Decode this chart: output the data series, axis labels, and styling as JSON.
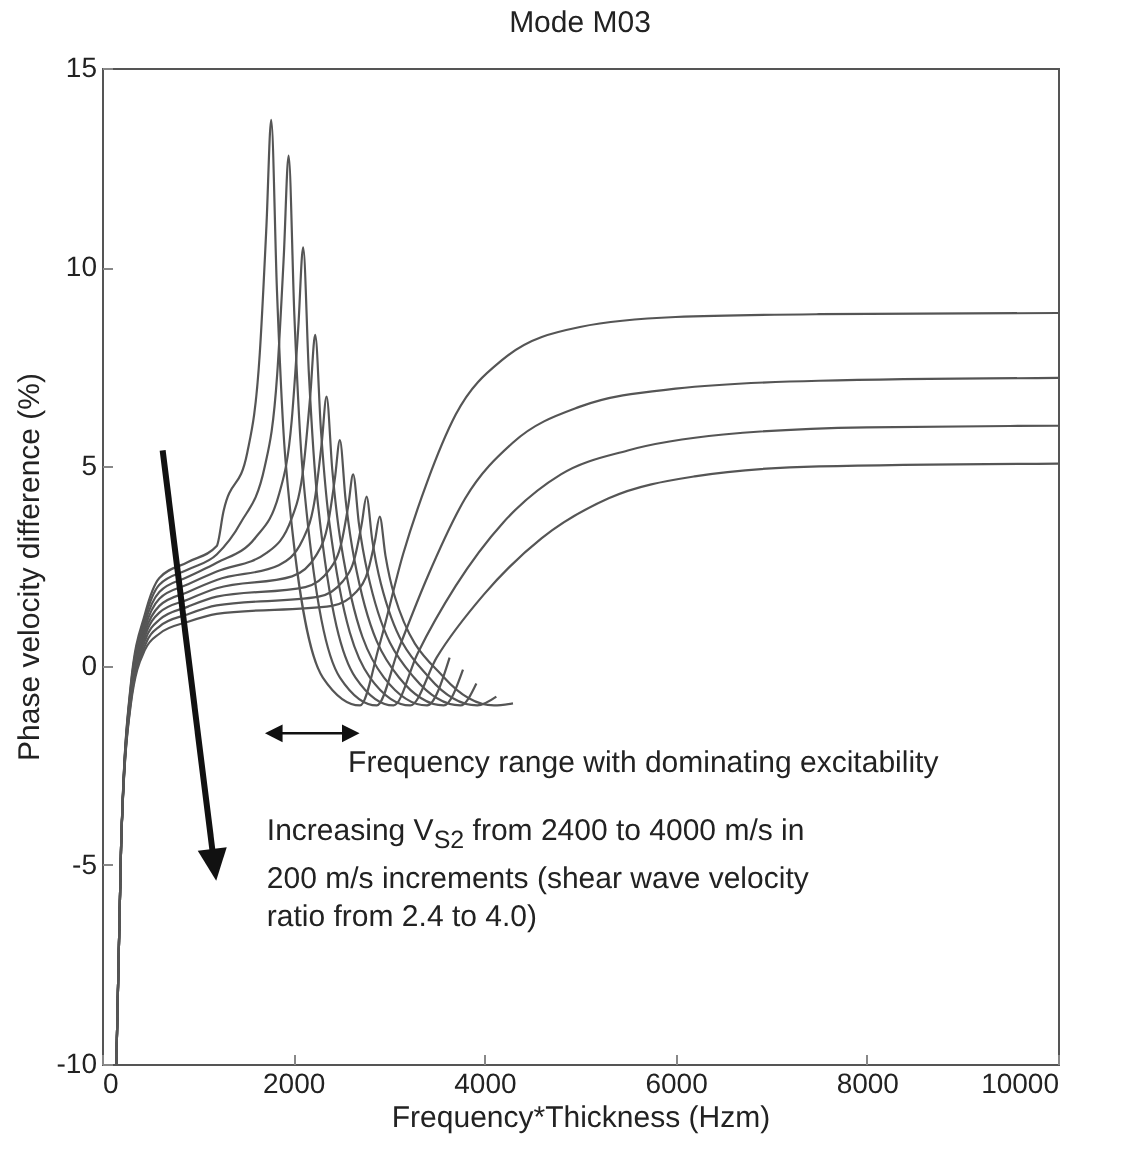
{
  "chart_data": {
    "type": "line",
    "title": "Mode M03",
    "xlabel": "Frequency*Thickness (Hzm)",
    "ylabel": "Phase velocity difference (%)",
    "xlim": [
      0,
      10000
    ],
    "xticks": [
      0,
      2000,
      4000,
      6000,
      8000,
      10000
    ],
    "ylim": [
      -10,
      15
    ],
    "yticks": [
      -10,
      -5,
      0,
      5,
      10,
      15
    ],
    "grid": false,
    "annotations": [
      "Frequency range with dominating excitability",
      "Increasing V$_{S2}$ from 2400 to 4000 m/s in 200 m/s increments (shear wave velocity ratio from 2.4 to 4.0)"
    ],
    "series": [
      {
        "color": "#555555",
        "x": [
          150,
          200,
          300,
          450,
          600,
          900,
          1200,
          1270,
          1520,
          1650,
          1720,
          1770,
          1830,
          1920,
          2310,
          2700,
          2900,
          3150,
          3400,
          3700,
          4200,
          5000,
          6000,
          7500,
          10000
        ],
        "values": [
          -10,
          -4.5,
          -0.5,
          1.3,
          2.2,
          2.6,
          3.0,
          3.86,
          5.35,
          7.82,
          11.03,
          13.7,
          9.42,
          5.14,
          -0.3,
          -1.0,
          0.5,
          2.8,
          4.6,
          6.3,
          7.7,
          8.5,
          8.75,
          8.82,
          8.85
        ]
      },
      {
        "color": "#555555",
        "x": [
          150,
          200,
          300,
          450,
          600,
          900,
          1200,
          1452,
          1702,
          1832,
          1902,
          1952,
          2012,
          2102,
          2489,
          2875,
          3100,
          3400,
          3800,
          4300,
          5000,
          6000,
          7500,
          10000
        ],
        "values": [
          -10,
          -4.5,
          -0.56,
          1.19,
          2.03,
          2.41,
          2.79,
          3.59,
          4.99,
          7.29,
          10.3,
          12.8,
          8.8,
          4.79,
          -0.3,
          -1.0,
          0.4,
          2.2,
          4.2,
          5.6,
          6.5,
          6.95,
          7.15,
          7.22
        ]
      },
      {
        "color": "#555555",
        "x": [
          150,
          200,
          300,
          450,
          600,
          900,
          1200,
          1604,
          1854,
          1984,
          2054,
          2104,
          2164,
          2254,
          2652,
          3050,
          3300,
          3700,
          4200,
          4800,
          5500,
          6500,
          8000,
          10000
        ],
        "values": [
          -10,
          -4.5,
          -0.63,
          1.08,
          1.85,
          2.23,
          2.58,
          3.21,
          4.32,
          6.14,
          8.52,
          10.5,
          7.33,
          4.16,
          -0.3,
          -1.0,
          0.3,
          2.0,
          3.6,
          4.8,
          5.4,
          5.8,
          5.98,
          6.02
        ]
      },
      {
        "color": "#555555",
        "x": [
          150,
          200,
          300,
          450,
          600,
          900,
          1200,
          1730,
          1980,
          2110,
          2180,
          2230,
          2290,
          2380,
          2803,
          3225,
          3500,
          4000,
          4600,
          5300,
          6200,
          7500,
          10000
        ],
        "values": [
          -10,
          -4.5,
          -0.69,
          0.96,
          1.68,
          2.04,
          2.36,
          2.84,
          3.67,
          5.03,
          6.82,
          8.3,
          5.92,
          3.55,
          -0.3,
          -1.0,
          0.2,
          1.8,
          3.2,
          4.2,
          4.75,
          5.0,
          5.07
        ]
      },
      {
        "color": "#555555",
        "x": [
          150,
          200,
          300,
          450,
          600,
          900,
          1200,
          1849,
          2099,
          2229,
          2299,
          2349,
          2409,
          2499,
          2950,
          3400,
          3636
        ],
        "values": [
          -10,
          -4.5,
          -0.75,
          0.85,
          1.5,
          1.85,
          2.15,
          2.52,
          3.16,
          4.22,
          5.6,
          6.75,
          4.91,
          3.07,
          -0.3,
          -1.0,
          0.2
        ]
      },
      {
        "color": "#555555",
        "x": [
          150,
          200,
          300,
          450,
          600,
          900,
          1200,
          1988,
          2238,
          2368,
          2438,
          2488,
          2548,
          2638,
          3107,
          3575,
          3776
        ],
        "values": [
          -10,
          -4.5,
          -0.81,
          0.74,
          1.33,
          1.66,
          1.94,
          2.24,
          2.76,
          3.61,
          4.73,
          5.66,
          4.17,
          2.68,
          -0.3,
          -1.0,
          -0.1
        ]
      },
      {
        "color": "#555555",
        "x": [
          150,
          200,
          300,
          450,
          600,
          900,
          1200,
          2127,
          2377,
          2507,
          2577,
          2627,
          2687,
          2777,
          3264,
          3750,
          3916
        ],
        "values": [
          -10,
          -4.5,
          -0.88,
          0.63,
          1.15,
          1.48,
          1.73,
          1.97,
          2.4,
          3.11,
          4.03,
          4.8,
          3.57,
          2.34,
          -0.3,
          -1.0,
          -0.45
        ]
      },
      {
        "color": "#555555",
        "x": [
          150,
          200,
          300,
          450,
          600,
          900,
          1200,
          2267,
          2517,
          2647,
          2717,
          2767,
          2827,
          2917,
          3421,
          3925,
          4125
        ],
        "values": [
          -10,
          -4.5,
          -0.94,
          0.51,
          0.98,
          1.29,
          1.51,
          1.73,
          2.11,
          2.74,
          3.56,
          4.24,
          3.15,
          2.06,
          -0.3,
          -1.0,
          -0.78
        ]
      },
      {
        "color": "#555555",
        "x": [
          150,
          200,
          300,
          450,
          600,
          900,
          1200,
          2405,
          2655,
          2785,
          2855,
          2905,
          2965,
          3055,
          3578,
          4100,
          4299
        ],
        "values": [
          -10,
          -4.5,
          -1.0,
          0.4,
          0.8,
          1.1,
          1.3,
          1.5,
          1.84,
          2.4,
          3.13,
          3.74,
          2.76,
          1.79,
          -0.3,
          -1.0,
          -0.95
        ]
      }
    ]
  }
}
